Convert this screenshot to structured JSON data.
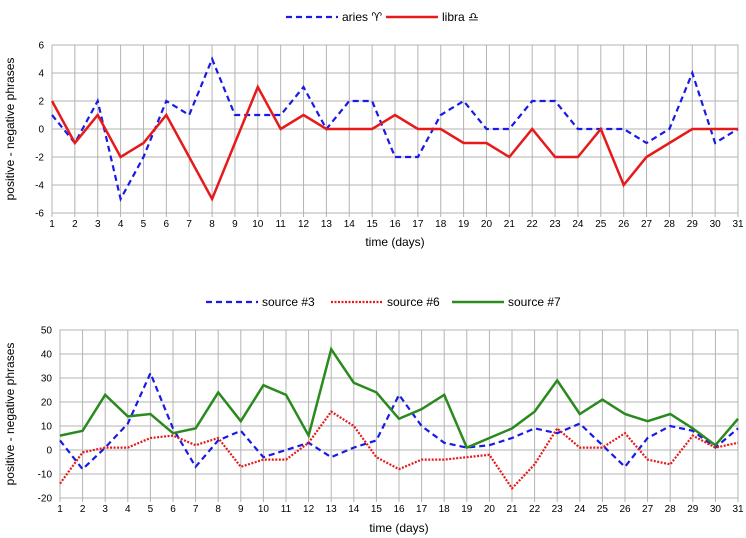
{
  "chart_data": [
    {
      "type": "line",
      "title": "",
      "xlabel": "time (days)",
      "ylabel": "positive - negative phrases",
      "x": [
        1,
        2,
        3,
        4,
        5,
        6,
        7,
        8,
        9,
        10,
        11,
        12,
        13,
        14,
        15,
        16,
        17,
        18,
        19,
        20,
        21,
        22,
        23,
        24,
        25,
        26,
        27,
        28,
        29,
        30,
        31
      ],
      "ylim": [
        -6,
        6
      ],
      "yticks": [
        -6,
        -4,
        -2,
        0,
        2,
        4,
        6
      ],
      "grid": true,
      "legend_position": "top-center",
      "series": [
        {
          "name": "aries ♈",
          "color": "#1a1ae6",
          "dash": "dashed",
          "values": [
            1,
            -1,
            2,
            -5,
            -2,
            2,
            1,
            5,
            1,
            1,
            1,
            3,
            0,
            2,
            2,
            -2,
            -2,
            1,
            2,
            0,
            0,
            2,
            2,
            0,
            0,
            0,
            -1,
            0,
            4,
            -1,
            0
          ]
        },
        {
          "name": "libra ♎",
          "color": "#e61a1a",
          "dash": "solid",
          "values": [
            2,
            -1,
            1,
            -2,
            -1,
            1,
            -2,
            -5,
            -1,
            3,
            0,
            1,
            0,
            0,
            0,
            1,
            0,
            0,
            -1,
            -1,
            -2,
            0,
            -2,
            -2,
            0,
            -4,
            -2,
            -1,
            0,
            0,
            0
          ]
        }
      ]
    },
    {
      "type": "line",
      "title": "",
      "xlabel": "time (days)",
      "ylabel": "positive - negative phrases",
      "x": [
        1,
        2,
        3,
        4,
        5,
        6,
        7,
        8,
        9,
        10,
        11,
        12,
        13,
        14,
        15,
        16,
        17,
        18,
        19,
        20,
        21,
        22,
        23,
        24,
        25,
        26,
        27,
        28,
        29,
        30,
        31
      ],
      "ylim": [
        -20,
        50
      ],
      "yticks": [
        -20,
        -10,
        0,
        10,
        20,
        30,
        40,
        50
      ],
      "grid": true,
      "legend_position": "top-center",
      "series": [
        {
          "name": "source #3",
          "color": "#1a1ae6",
          "dash": "dashed",
          "values": [
            4,
            -8,
            1,
            11,
            32,
            9,
            -7,
            4,
            8,
            -3,
            0,
            3,
            -3,
            1,
            4,
            23,
            10,
            3,
            1,
            2,
            5,
            9,
            7,
            11,
            2,
            -7,
            5,
            10,
            8,
            1,
            9
          ]
        },
        {
          "name": "source #6",
          "color": "#e61a1a",
          "dash": "dotted",
          "values": [
            -14,
            -1,
            1,
            1,
            5,
            6,
            2,
            5,
            -7,
            -4,
            -4,
            3,
            16,
            10,
            -3,
            -8,
            -4,
            -4,
            -3,
            -2,
            -16,
            -6,
            9,
            1,
            1,
            7,
            -4,
            -6,
            6,
            1,
            3
          ]
        },
        {
          "name": "source #7",
          "color": "#2a8a1e",
          "dash": "solid",
          "values": [
            6,
            8,
            23,
            14,
            15,
            7,
            9,
            24,
            12,
            27,
            23,
            6,
            42,
            28,
            24,
            13,
            17,
            23,
            1,
            5,
            9,
            16,
            29,
            15,
            21,
            15,
            12,
            15,
            9,
            2,
            13
          ]
        }
      ]
    }
  ]
}
